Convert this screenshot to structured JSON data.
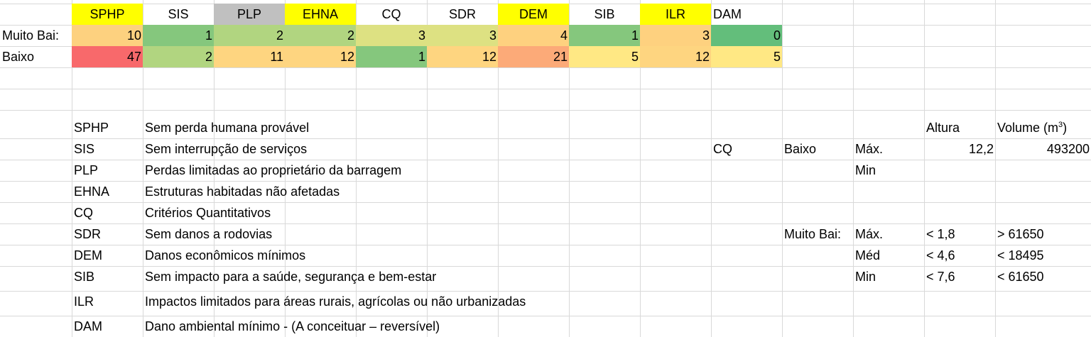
{
  "header_row": [
    {
      "text": "SPHP",
      "bg": "#ffff00"
    },
    {
      "text": "SIS",
      "bg": ""
    },
    {
      "text": "PLP",
      "bg": "#c0c0c0"
    },
    {
      "text": "EHNA",
      "bg": "#ffff00"
    },
    {
      "text": "CQ",
      "bg": ""
    },
    {
      "text": "SDR",
      "bg": ""
    },
    {
      "text": "DEM",
      "bg": "#ffff00"
    },
    {
      "text": "SIB",
      "bg": ""
    },
    {
      "text": "ILR",
      "bg": "#ffff00"
    },
    {
      "text": "DAM",
      "bg": ""
    }
  ],
  "data_rows": [
    {
      "label": "Muito Baixo",
      "label_visible": "Muito Bai:",
      "values": [
        "10",
        "1",
        "2",
        "2",
        "3",
        "3",
        "4",
        "1",
        "3",
        "0"
      ],
      "colors": [
        "#fdd17f",
        "#85c77d",
        "#b1d580",
        "#b1d580",
        "#dde182",
        "#dde182",
        "#fed17f",
        "#85c77d",
        "#fed17f",
        "#63be7b"
      ]
    },
    {
      "label": "Baixo",
      "label_visible": "Baixo",
      "values": [
        "47",
        "2",
        "11",
        "12",
        "1",
        "12",
        "21",
        "5",
        "12",
        "5"
      ],
      "colors": [
        "#f8696b",
        "#b1d580",
        "#fed580",
        "#fed580",
        "#85c77d",
        "#fed580",
        "#fcaa78",
        "#ffe884",
        "#fed580",
        "#ffe884"
      ]
    }
  ],
  "legend": [
    {
      "code": "SPHP",
      "desc": "Sem perda humana provável"
    },
    {
      "code": "SIS",
      "desc": "Sem interrupção de serviços"
    },
    {
      "code": "PLP",
      "desc": "Perdas limitadas ao proprietário da barragem"
    },
    {
      "code": "EHNA",
      "desc": "Estruturas habitadas não afetadas"
    },
    {
      "code": "CQ",
      "desc": "Critérios Quantitativos"
    },
    {
      "code": "SDR",
      "desc": "Sem danos a rodovias"
    },
    {
      "code": "DEM",
      "desc": "Danos econômicos mínimos"
    },
    {
      "code": "SIB",
      "desc": "Sem impacto para a saúde, segurança e bem-estar"
    },
    {
      "code": "ILR",
      "desc": "Impactos limitados para áreas rurais, agrícolas ou não urbanizadas"
    },
    {
      "code": "DAM",
      "desc": "Dano ambiental mínimo - (A conceituar – reversível)"
    }
  ],
  "criteria": {
    "altura_header": "Altura",
    "volume_header": "Volume (m",
    "volume_sup": "3",
    "volume_close": ")",
    "cq_label": "CQ",
    "baixo_label": "Baixo",
    "baixo_max": "Máx.",
    "baixo_max_altura": "12,2",
    "baixo_max_volume": "493200",
    "baixo_min": "Min",
    "muito_baixo_label": "Muito Bai:",
    "mb_rows": [
      {
        "k": "Máx.",
        "altura": "< 1,8",
        "volume": "> 61650"
      },
      {
        "k": "Méd",
        "altura": "< 4,6",
        "volume": "<  18495"
      },
      {
        "k": "Min",
        "altura": "< 7,6",
        "volume": "< 61650"
      }
    ]
  }
}
